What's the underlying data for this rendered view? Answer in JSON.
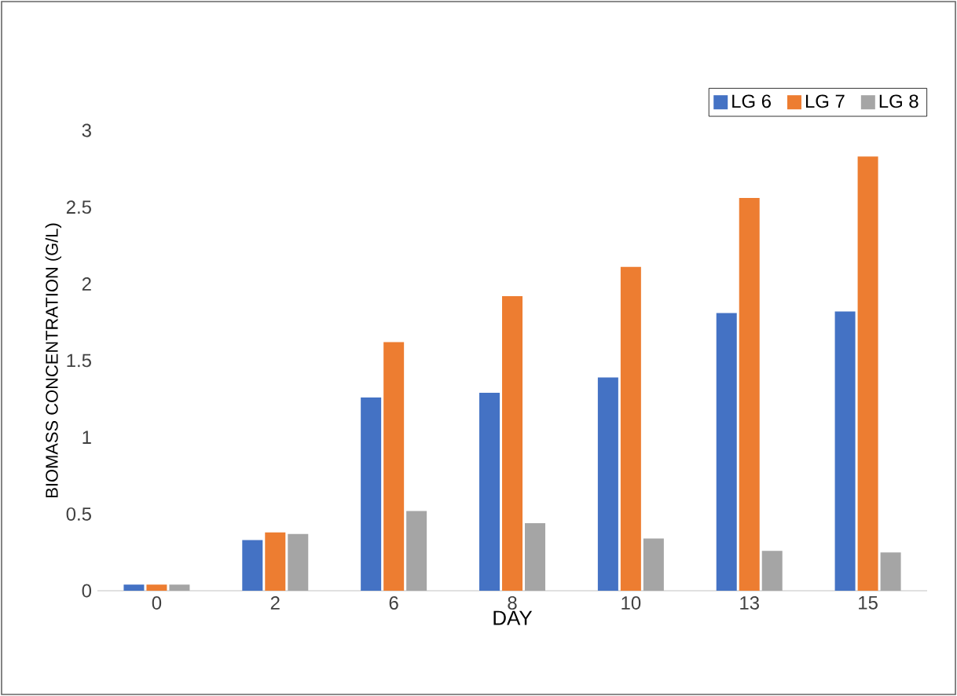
{
  "chart_data": {
    "type": "bar",
    "xlabel": "DAY",
    "ylabel": "BIOMASS CONCENTRATION (G/L)",
    "categories": [
      "0",
      "2",
      "6",
      "8",
      "10",
      "13",
      "15"
    ],
    "series": [
      {
        "name": "LG 6",
        "color": "#4472c4",
        "values": [
          0.04,
          0.33,
          1.26,
          1.29,
          1.39,
          1.81,
          1.82
        ]
      },
      {
        "name": "LG 7",
        "color": "#ed7d31",
        "values": [
          0.04,
          0.38,
          1.62,
          1.92,
          2.11,
          2.56,
          2.83
        ]
      },
      {
        "name": "LG 8",
        "color": "#a5a5a5",
        "values": [
          0.04,
          0.37,
          0.52,
          0.44,
          0.34,
          0.26,
          0.25
        ]
      }
    ],
    "ylim": [
      0,
      3
    ],
    "yticks": [
      0,
      0.5,
      1,
      1.5,
      2,
      2.5,
      3
    ],
    "legend": "top right"
  }
}
